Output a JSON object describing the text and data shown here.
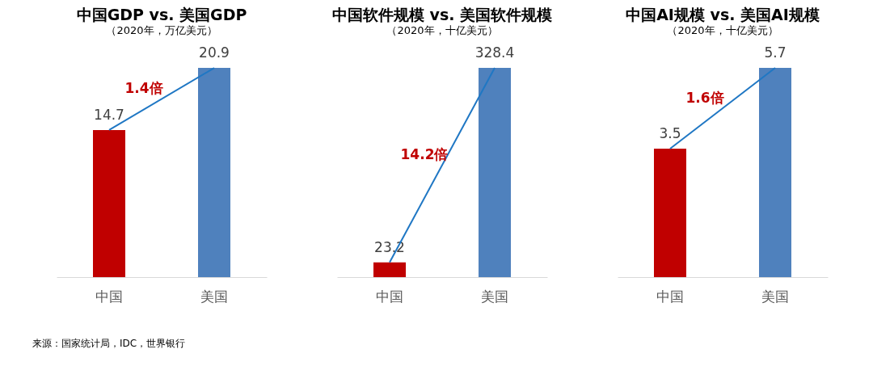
{
  "chart_data": [
    {
      "type": "bar",
      "title": "中国GDP vs. 美国GDP",
      "subtitle": "（2020年，万亿美元）",
      "categories": [
        "中国",
        "美国"
      ],
      "values": [
        14.7,
        20.9
      ],
      "colors": [
        "#c00000",
        "#4f81bd"
      ],
      "data_labels": true,
      "annotations": [
        "1.4倍",
        "来源：国家统计局，IDC，世界银行"
      ]
    },
    {
      "type": "bar",
      "title": "中国软件规模 vs. 美国软件规模",
      "subtitle": "（2020年，十亿美元）",
      "categories": [
        "中国",
        "美国"
      ],
      "values": [
        23.2,
        328.4
      ],
      "colors": [
        "#c00000",
        "#4f81bd"
      ],
      "data_labels": true,
      "annotations": [
        "14.2倍"
      ]
    },
    {
      "type": "bar",
      "title": "中国AI规模 vs. 美国AI规模",
      "subtitle": "（2020年，十亿美元）",
      "categories": [
        "中国",
        "美国"
      ],
      "values": [
        3.5,
        5.7
      ],
      "colors": [
        "#c00000",
        "#4f81bd"
      ],
      "data_labels": true,
      "annotations": [
        "1.6倍"
      ]
    }
  ]
}
